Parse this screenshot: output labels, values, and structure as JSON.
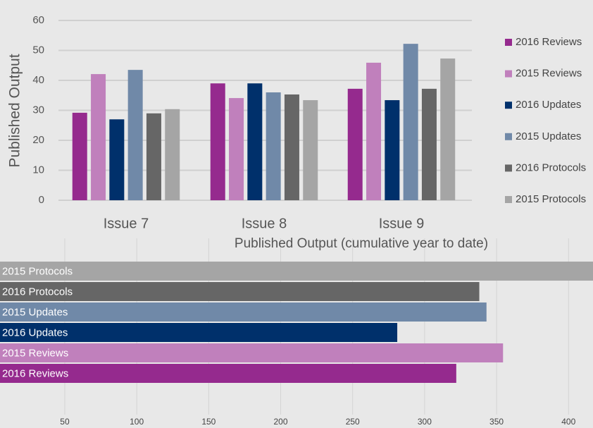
{
  "chart_data": [
    {
      "type": "bar",
      "y_label": "Published Output",
      "categories": [
        "Issue 7",
        "Issue 8",
        "Issue 9"
      ],
      "series": [
        {
          "name": "2016 Reviews",
          "color": "#952a8e",
          "values": [
            29.2,
            39,
            37.2
          ]
        },
        {
          "name": "2015 Reviews",
          "color": "#c080bc",
          "values": [
            42.1,
            34.1,
            45.9
          ]
        },
        {
          "name": "2016 Updates",
          "color": "#00306b",
          "values": [
            27,
            39,
            33.4
          ]
        },
        {
          "name": "2015 Updates",
          "color": "#7089a8",
          "values": [
            43.5,
            36,
            52.2
          ]
        },
        {
          "name": "2016 Protocols",
          "color": "#666666",
          "values": [
            29,
            35.3,
            37.2
          ]
        },
        {
          "name": "2015 Protocols",
          "color": "#a5a5a5",
          "values": [
            30.4,
            33.4,
            47.3
          ]
        }
      ],
      "ylim": [
        0,
        60
      ],
      "yticks": [
        0,
        10,
        20,
        30,
        40,
        50,
        60
      ],
      "grid": true,
      "legend": "right"
    },
    {
      "type": "hbar",
      "title": "Published Output (cumulative year to date)",
      "categories": [
        "2015 Protocols",
        "2016 Protocols",
        "2015 Updates",
        "2016 Updates",
        "2015 Reviews",
        "2016 Reviews"
      ],
      "colors": [
        "#a5a5a5",
        "#666666",
        "#7089a8",
        "#00306b",
        "#c080bc",
        "#952a8e"
      ],
      "values": [
        420,
        338,
        343,
        281,
        354.5,
        322
      ],
      "xlim": [
        5,
        417
      ],
      "xticks": [
        50,
        100,
        150,
        200,
        250,
        300,
        350,
        400
      ],
      "grid": true
    }
  ]
}
